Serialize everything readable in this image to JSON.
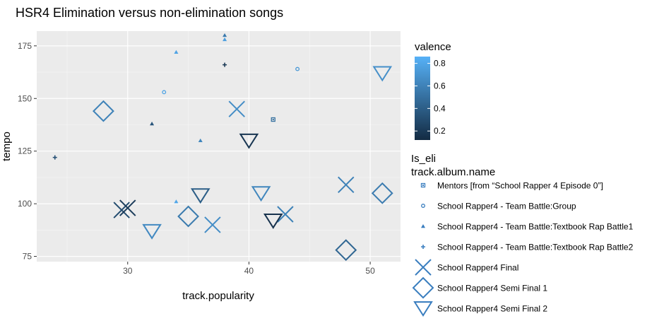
{
  "chart_data": {
    "type": "scatter",
    "title": "HSR4 Elimination versus non-elimination songs",
    "xlabel": "track.popularity",
    "ylabel": "tempo",
    "xlim": [
      22.5,
      52.5
    ],
    "ylim": [
      72.5,
      182
    ],
    "x_ticks": [
      30,
      40,
      50
    ],
    "y_ticks": [
      75,
      100,
      125,
      150,
      175
    ],
    "x_tick_labels": [
      "30",
      "40",
      "50"
    ],
    "y_tick_labels": [
      "75",
      "100",
      "125",
      "150",
      "175"
    ],
    "grid": true,
    "colorbar": {
      "title": "valence",
      "range": [
        0.12,
        0.86
      ],
      "ticks": [
        0.2,
        0.4,
        0.6,
        0.8
      ],
      "tick_labels": [
        "0.2",
        "0.4",
        "0.6",
        "0.8"
      ],
      "low_color": "#132B43",
      "high_color": "#56B1F7"
    },
    "legend": {
      "title_line1": "Is_eli",
      "title_line2": "track.album.name",
      "placement": "right",
      "entries": [
        {
          "label": "Mentors [from “School Rapper 4 Episode 0”]",
          "shape": "square-dot"
        },
        {
          "label": "School Rapper4 - Team Battle:Group",
          "shape": "circle-open-small"
        },
        {
          "label": "School Rapper4 - Team Battle:Textbook Rap Battle1",
          "shape": "triangle-up-small"
        },
        {
          "label": "School Rapper4 - Team Battle:Textbook Rap Battle2",
          "shape": "cross-small"
        },
        {
          "label": "School Rapper4 Final",
          "shape": "x-open-large"
        },
        {
          "label": "School Rapper4 Semi Final 1",
          "shape": "diamond-open-large"
        },
        {
          "label": "School Rapper4 Semi Final 2",
          "shape": "triangle-down-open-large"
        }
      ]
    },
    "series": [
      {
        "name": "Mentors [from “School Rapper 4 Episode 0”]",
        "shape": "square-dot",
        "points": [
          {
            "x": 42,
            "y": 140,
            "valence": 0.5
          }
        ]
      },
      {
        "name": "School Rapper4 - Team Battle:Group",
        "shape": "circle-open-small",
        "points": [
          {
            "x": 33,
            "y": 153,
            "valence": 0.78
          },
          {
            "x": 44,
            "y": 164,
            "valence": 0.72
          }
        ]
      },
      {
        "name": "School Rapper4 - Team Battle:Textbook Rap Battle1",
        "shape": "triangle-up-small",
        "points": [
          {
            "x": 34,
            "y": 172,
            "valence": 0.78
          },
          {
            "x": 38,
            "y": 180,
            "valence": 0.55
          },
          {
            "x": 38,
            "y": 178,
            "valence": 0.76
          },
          {
            "x": 36,
            "y": 130,
            "valence": 0.62
          },
          {
            "x": 34,
            "y": 101,
            "valence": 0.8
          },
          {
            "x": 32,
            "y": 138,
            "valence": 0.35
          }
        ]
      },
      {
        "name": "School Rapper4 - Team Battle:Textbook Rap Battle2",
        "shape": "cross-small",
        "points": [
          {
            "x": 24,
            "y": 122,
            "valence": 0.32
          },
          {
            "x": 38,
            "y": 166,
            "valence": 0.2
          }
        ]
      },
      {
        "name": "School Rapper4 Final",
        "shape": "x-open-large",
        "points": [
          {
            "x": 39,
            "y": 145,
            "valence": 0.66
          },
          {
            "x": 48,
            "y": 109,
            "valence": 0.6
          },
          {
            "x": 43,
            "y": 95,
            "valence": 0.6
          },
          {
            "x": 37,
            "y": 90,
            "valence": 0.66
          },
          {
            "x": 29.5,
            "y": 97,
            "valence": 0.3
          },
          {
            "x": 30,
            "y": 98,
            "valence": 0.22
          }
        ]
      },
      {
        "name": "School Rapper4 Semi Final 1",
        "shape": "diamond-open-large",
        "points": [
          {
            "x": 28,
            "y": 144,
            "valence": 0.6
          },
          {
            "x": 51,
            "y": 105,
            "valence": 0.57
          },
          {
            "x": 35,
            "y": 94,
            "valence": 0.56
          },
          {
            "x": 48,
            "y": 78,
            "valence": 0.45
          }
        ]
      },
      {
        "name": "School Rapper4 Semi Final 2",
        "shape": "triangle-down-open-large",
        "points": [
          {
            "x": 51,
            "y": 162,
            "valence": 0.67
          },
          {
            "x": 40,
            "y": 130,
            "valence": 0.18
          },
          {
            "x": 36,
            "y": 104,
            "valence": 0.4
          },
          {
            "x": 41,
            "y": 105,
            "valence": 0.62
          },
          {
            "x": 42,
            "y": 92,
            "valence": 0.16
          },
          {
            "x": 32,
            "y": 87,
            "valence": 0.64
          }
        ]
      }
    ]
  }
}
